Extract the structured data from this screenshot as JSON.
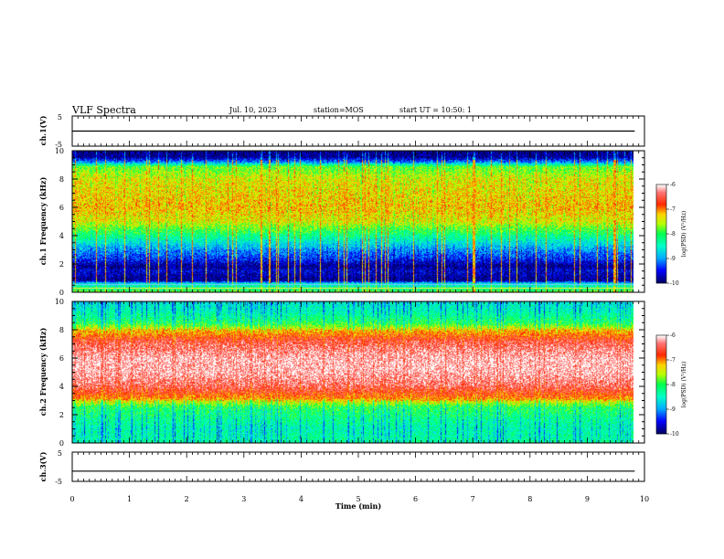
{
  "header": {
    "title": "VLF Spectra",
    "date": "Jul. 10, 2023",
    "station": "station=MOS",
    "start": "start UT = 10:50: 1"
  },
  "colors": {
    "colormap": [
      "#00007f",
      "#0000ff",
      "#00bfff",
      "#00ff80",
      "#bfff00",
      "#ffd000",
      "#ff2000",
      "#ffffff"
    ]
  },
  "chart_data": [
    {
      "type": "line",
      "panel": "ch1-voltage",
      "ylabel": "ch.1(V)",
      "ylim": [
        -5,
        5
      ],
      "yticks": [
        5,
        -5
      ],
      "series": [
        {
          "x": [
            0,
            9.83
          ],
          "values": [
            0,
            0
          ]
        }
      ]
    },
    {
      "type": "heatmap",
      "panel": "ch1-spectrogram",
      "ylabel": "ch.1 Frequency (kHz)",
      "ylim": [
        0,
        10
      ],
      "yticks": [
        0,
        2,
        4,
        6,
        8,
        10
      ],
      "xlim": [
        0,
        10
      ],
      "data_end_min": 9.83,
      "colorbar": {
        "label": "log(PSD) (V²/Hz)",
        "range": [
          -10,
          -6
        ],
        "ticks": [
          -6,
          -7,
          -8,
          -9,
          -10
        ]
      },
      "profile": [
        {
          "f_khz": 0.0,
          "log_psd": -7.8
        },
        {
          "f_khz": 0.2,
          "log_psd": -8.2
        },
        {
          "f_khz": 0.6,
          "log_psd": -8.6
        },
        {
          "f_khz": 0.8,
          "log_psd": -9.9
        },
        {
          "f_khz": 1.5,
          "log_psd": -9.6
        },
        {
          "f_khz": 1.8,
          "log_psd": -9.9
        },
        {
          "f_khz": 2.3,
          "log_psd": -9.4
        },
        {
          "f_khz": 3.0,
          "log_psd": -9.0
        },
        {
          "f_khz": 4.0,
          "log_psd": -8.2
        },
        {
          "f_khz": 5.0,
          "log_psd": -7.4
        },
        {
          "f_khz": 6.0,
          "log_psd": -7.2
        },
        {
          "f_khz": 7.0,
          "log_psd": -7.3
        },
        {
          "f_khz": 8.0,
          "log_psd": -7.4
        },
        {
          "f_khz": 8.9,
          "log_psd": -7.8
        },
        {
          "f_khz": 9.2,
          "log_psd": -9.0
        },
        {
          "f_khz": 9.6,
          "log_psd": -9.9
        },
        {
          "f_khz": 10.0,
          "log_psd": -9.9
        }
      ]
    },
    {
      "type": "heatmap",
      "panel": "ch2-spectrogram",
      "ylabel": "ch.2 Frequency (kHz)",
      "ylim": [
        0,
        10
      ],
      "yticks": [
        0,
        2,
        4,
        6,
        8,
        10
      ],
      "xlim": [
        0,
        10
      ],
      "data_end_min": 9.83,
      "colorbar": {
        "label": "log(PSD) (V²/Hz)",
        "range": [
          -10,
          -6
        ],
        "ticks": [
          -6,
          -7,
          -8,
          -9,
          -10
        ]
      },
      "profile": [
        {
          "f_khz": 0.0,
          "log_psd": -8.3
        },
        {
          "f_khz": 1.0,
          "log_psd": -8.4
        },
        {
          "f_khz": 2.5,
          "log_psd": -8.0
        },
        {
          "f_khz": 3.2,
          "log_psd": -6.9
        },
        {
          "f_khz": 4.0,
          "log_psd": -6.4
        },
        {
          "f_khz": 5.0,
          "log_psd": -6.1
        },
        {
          "f_khz": 6.0,
          "log_psd": -6.1
        },
        {
          "f_khz": 7.2,
          "log_psd": -6.5
        },
        {
          "f_khz": 8.0,
          "log_psd": -7.2
        },
        {
          "f_khz": 8.5,
          "log_psd": -8.0
        },
        {
          "f_khz": 9.3,
          "log_psd": -8.4
        },
        {
          "f_khz": 10.0,
          "log_psd": -8.6
        }
      ]
    },
    {
      "type": "line",
      "panel": "ch3-voltage",
      "ylabel": "ch.3(V)",
      "ylim": [
        -5,
        5
      ],
      "yticks": [
        5,
        -5
      ],
      "series": [
        {
          "x": [
            0,
            9.83
          ],
          "values": [
            -1.5,
            -1.5
          ]
        }
      ]
    }
  ],
  "xaxis": {
    "label": "Time (min)",
    "ticks": [
      "0",
      "1",
      "2",
      "3",
      "4",
      "5",
      "6",
      "7",
      "8",
      "9",
      "10"
    ]
  },
  "colorbar_ticks": [
    "-6",
    "-7",
    "-8",
    "-9",
    "-10"
  ],
  "colorbar_label": "log(PSD) (V²/Hz)"
}
